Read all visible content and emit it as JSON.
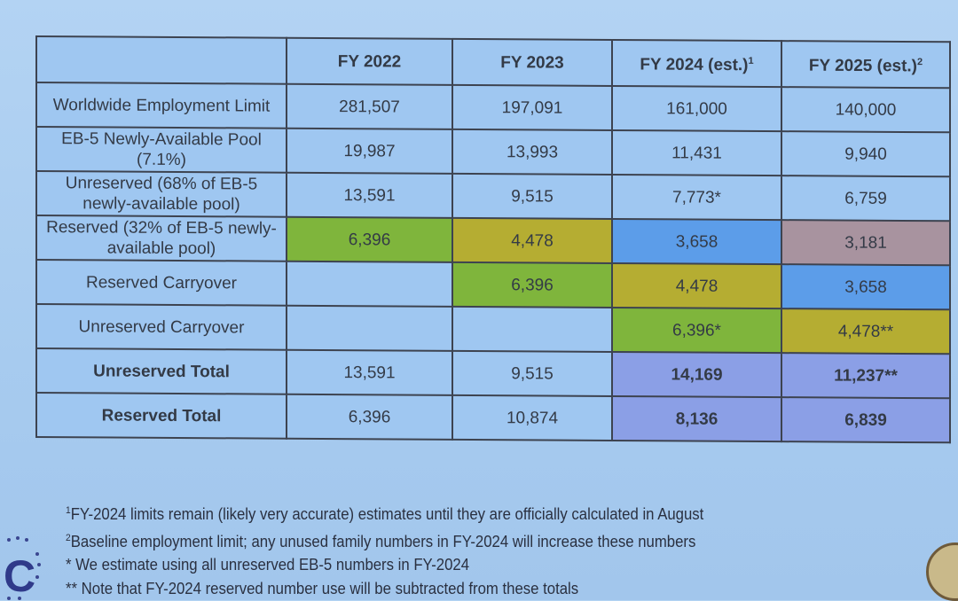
{
  "table": {
    "headers": [
      {
        "text": "",
        "sup": ""
      },
      {
        "text": "FY 2022",
        "sup": ""
      },
      {
        "text": "FY 2023",
        "sup": ""
      },
      {
        "text": "FY 2024 (est.)",
        "sup": "1"
      },
      {
        "text": "FY 2025 (est.)",
        "sup": "2"
      }
    ],
    "rows": [
      {
        "label": "Worldwide Employment Limit",
        "bold": false,
        "values": [
          "281,507",
          "197,091",
          "161,000",
          "140,000"
        ],
        "colors": [
          "",
          "",
          "",
          ""
        ]
      },
      {
        "label": "EB-5 Newly-Available Pool (7.1%)",
        "bold": false,
        "values": [
          "19,987",
          "13,993",
          "11,431",
          "9,940"
        ],
        "colors": [
          "",
          "",
          "",
          ""
        ]
      },
      {
        "label": "Unreserved (68% of EB-5 newly-available pool)",
        "bold": false,
        "values": [
          "13,591",
          "9,515",
          "7,773*",
          "6,759"
        ],
        "colors": [
          "",
          "",
          "",
          ""
        ]
      },
      {
        "label": "Reserved (32% of EB-5 newly-available pool)",
        "bold": false,
        "values": [
          "6,396",
          "4,478",
          "3,658",
          "3,181"
        ],
        "colors": [
          "#7fb53c",
          "#b5ad32",
          "#5c9de9",
          "#a8939f"
        ]
      },
      {
        "label": "Reserved Carryover",
        "bold": false,
        "values": [
          "",
          "6,396",
          "4,478",
          "3,658"
        ],
        "colors": [
          "",
          "#7fb53c",
          "#b5ad32",
          "#5c9de9"
        ]
      },
      {
        "label": "Unreserved Carryover",
        "bold": false,
        "values": [
          "",
          "",
          "6,396*",
          "4,478**"
        ],
        "colors": [
          "",
          "",
          "#7fb53c",
          "#b5ad32"
        ]
      },
      {
        "label": "Unreserved Total",
        "bold": true,
        "values": [
          "13,591",
          "9,515",
          "14,169",
          "11,237**"
        ],
        "colors": [
          "",
          "",
          "#8b9fe6",
          "#8b9fe6"
        ]
      },
      {
        "label": "Reserved Total",
        "bold": true,
        "values": [
          "6,396",
          "10,874",
          "8,136",
          "6,839"
        ],
        "colors": [
          "",
          "",
          "#8b9fe6",
          "#8b9fe6"
        ]
      }
    ]
  },
  "footnotes": [
    {
      "mark": "1",
      "text": "FY-2024 limits remain (likely very accurate) estimates until they are officially calculated in August"
    },
    {
      "mark": "2",
      "text": "Baseline employment limit; any unused family numbers in FY-2024 will increase these numbers"
    },
    {
      "mark": "",
      "text": "* We estimate using all unreserved EB-5 numbers in FY-2024"
    },
    {
      "mark": "",
      "text": "** Note that FY-2024 reserved number use will be subtracted from these totals"
    }
  ],
  "logo": {
    "letter": "C"
  }
}
